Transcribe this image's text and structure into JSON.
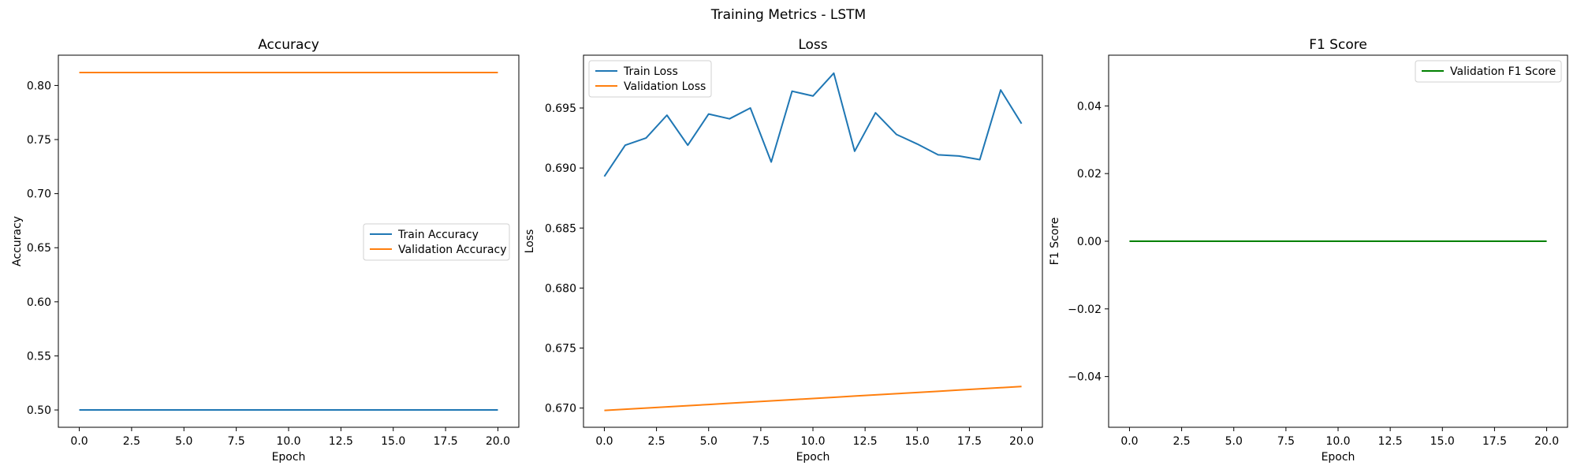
{
  "figure": {
    "title": "Training Metrics - LSTM"
  },
  "chart_data": [
    {
      "type": "line",
      "title": "Accuracy",
      "xlabel": "Epoch",
      "ylabel": "Accuracy",
      "xlim": [
        -1,
        21
      ],
      "ylim": [
        0.484,
        0.828
      ],
      "xticks": [
        0,
        2.5,
        5,
        7.5,
        10,
        12.5,
        15,
        17.5,
        20
      ],
      "xtick_labels": [
        "0.0",
        "2.5",
        "5.0",
        "7.5",
        "10.0",
        "12.5",
        "15.0",
        "17.5",
        "20.0"
      ],
      "yticks": [
        0.5,
        0.55,
        0.6,
        0.65,
        0.7,
        0.75,
        0.8
      ],
      "ytick_labels": [
        "0.50",
        "0.55",
        "0.60",
        "0.65",
        "0.70",
        "0.75",
        "0.80"
      ],
      "legend": "center-right",
      "grid": false,
      "x": [
        0,
        1,
        2,
        3,
        4,
        5,
        6,
        7,
        8,
        9,
        10,
        11,
        12,
        13,
        14,
        15,
        16,
        17,
        18,
        19,
        20
      ],
      "series": [
        {
          "name": "Train Accuracy",
          "color": "#1f77b4",
          "values": [
            0.5,
            0.5,
            0.5,
            0.5,
            0.5,
            0.5,
            0.5,
            0.5,
            0.5,
            0.5,
            0.5,
            0.5,
            0.5,
            0.5,
            0.5,
            0.5,
            0.5,
            0.5,
            0.5,
            0.5,
            0.5
          ]
        },
        {
          "name": "Validation Accuracy",
          "color": "#ff7f0e",
          "values": [
            0.812,
            0.812,
            0.812,
            0.812,
            0.812,
            0.812,
            0.812,
            0.812,
            0.812,
            0.812,
            0.812,
            0.812,
            0.812,
            0.812,
            0.812,
            0.812,
            0.812,
            0.812,
            0.812,
            0.812,
            0.812
          ]
        }
      ]
    },
    {
      "type": "line",
      "title": "Loss",
      "xlabel": "Epoch",
      "ylabel": "Loss",
      "xlim": [
        -1,
        21
      ],
      "ylim": [
        0.6684,
        0.6994
      ],
      "xticks": [
        0,
        2.5,
        5,
        7.5,
        10,
        12.5,
        15,
        17.5,
        20
      ],
      "xtick_labels": [
        "0.0",
        "2.5",
        "5.0",
        "7.5",
        "10.0",
        "12.5",
        "15.0",
        "17.5",
        "20.0"
      ],
      "yticks": [
        0.67,
        0.675,
        0.68,
        0.685,
        0.69,
        0.695
      ],
      "ytick_labels": [
        "0.670",
        "0.675",
        "0.680",
        "0.685",
        "0.690",
        "0.695"
      ],
      "legend": "top-left",
      "grid": false,
      "x": [
        0,
        1,
        2,
        3,
        4,
        5,
        6,
        7,
        8,
        9,
        10,
        11,
        12,
        13,
        14,
        15,
        16,
        17,
        18,
        19,
        20
      ],
      "series": [
        {
          "name": "Train Loss",
          "color": "#1f77b4",
          "values": [
            0.6893,
            0.6919,
            0.6925,
            0.6944,
            0.6919,
            0.6945,
            0.6941,
            0.695,
            0.6905,
            0.6964,
            0.696,
            0.6979,
            0.6914,
            0.6946,
            0.6928,
            0.692,
            0.6911,
            0.691,
            0.6907,
            0.6965,
            0.6937
          ]
        },
        {
          "name": "Validation Loss",
          "color": "#ff7f0e",
          "values": [
            0.6698,
            0.6699,
            0.67,
            0.6701,
            0.6702,
            0.6703,
            0.6704,
            0.6705,
            0.6706,
            0.6707,
            0.6708,
            0.6709,
            0.671,
            0.6711,
            0.6712,
            0.6713,
            0.6714,
            0.6715,
            0.6716,
            0.6717,
            0.6718
          ]
        }
      ]
    },
    {
      "type": "line",
      "title": "F1 Score",
      "xlabel": "Epoch",
      "ylabel": "F1 Score",
      "xlim": [
        -1,
        21
      ],
      "ylim": [
        -0.055,
        0.055
      ],
      "xticks": [
        0,
        2.5,
        5,
        7.5,
        10,
        12.5,
        15,
        17.5,
        20
      ],
      "xtick_labels": [
        "0.0",
        "2.5",
        "5.0",
        "7.5",
        "10.0",
        "12.5",
        "15.0",
        "17.5",
        "20.0"
      ],
      "yticks": [
        -0.04,
        -0.02,
        0,
        0.02,
        0.04
      ],
      "ytick_labels": [
        "−0.04",
        "−0.02",
        "0.00",
        "0.02",
        "0.04"
      ],
      "legend": "top-right",
      "grid": false,
      "x": [
        0,
        1,
        2,
        3,
        4,
        5,
        6,
        7,
        8,
        9,
        10,
        11,
        12,
        13,
        14,
        15,
        16,
        17,
        18,
        19,
        20
      ],
      "series": [
        {
          "name": "Validation F1 Score",
          "color": "#008000",
          "values": [
            0,
            0,
            0,
            0,
            0,
            0,
            0,
            0,
            0,
            0,
            0,
            0,
            0,
            0,
            0,
            0,
            0,
            0,
            0,
            0,
            0
          ]
        }
      ]
    }
  ]
}
